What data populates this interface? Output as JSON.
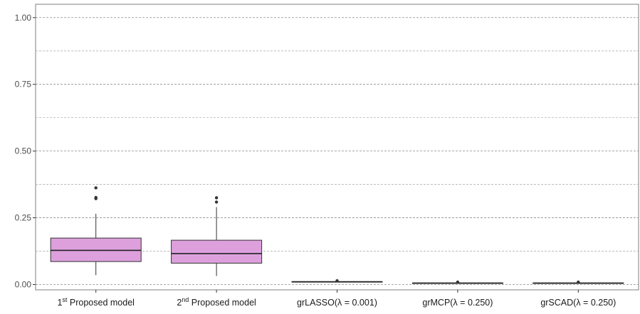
{
  "chart_data": {
    "type": "box",
    "title": "",
    "xlabel": "",
    "ylabel": "",
    "ylim": [
      -0.02,
      1.05
    ],
    "y_ticks": [
      "0.00",
      "0.25",
      "0.50",
      "0.75",
      "1.00"
    ],
    "y_tick_values": [
      0,
      0.25,
      0.5,
      0.75,
      1.0
    ],
    "minor_grid_values": [
      0.125,
      0.375,
      0.625,
      0.875
    ],
    "grid": true,
    "box_fill": "#dda0dd",
    "box_stroke": "#333333",
    "categories": [
      {
        "pre": "1",
        "sup": "st",
        "post": " Proposed model"
      },
      {
        "pre": "2",
        "sup": "nd",
        "post": " Proposed model"
      },
      {
        "pre": "grLASSO(",
        "sup": "",
        "post": "λ = 0.001)"
      },
      {
        "pre": "grMCP(",
        "sup": "",
        "post": "λ = 0.250)"
      },
      {
        "pre": "grSCAD(",
        "sup": "",
        "post": "λ = 0.250)"
      }
    ],
    "boxes": [
      {
        "min": 0.035,
        "q1": 0.086,
        "median": 0.128,
        "q3": 0.174,
        "max": 0.265,
        "outliers": [
          0.322,
          0.326,
          0.362
        ]
      },
      {
        "min": 0.032,
        "q1": 0.08,
        "median": 0.116,
        "q3": 0.166,
        "max": 0.29,
        "outliers": [
          0.309,
          0.325
        ]
      },
      {
        "min": 0.008,
        "q1": 0.009,
        "median": 0.01,
        "q3": 0.011,
        "max": 0.012,
        "outliers": [
          0.014
        ]
      },
      {
        "min": 0.003,
        "q1": 0.004,
        "median": 0.005,
        "q3": 0.006,
        "max": 0.007,
        "outliers": [
          0.009
        ]
      },
      {
        "min": 0.003,
        "q1": 0.004,
        "median": 0.005,
        "q3": 0.006,
        "max": 0.007,
        "outliers": [
          0.009
        ]
      }
    ]
  }
}
